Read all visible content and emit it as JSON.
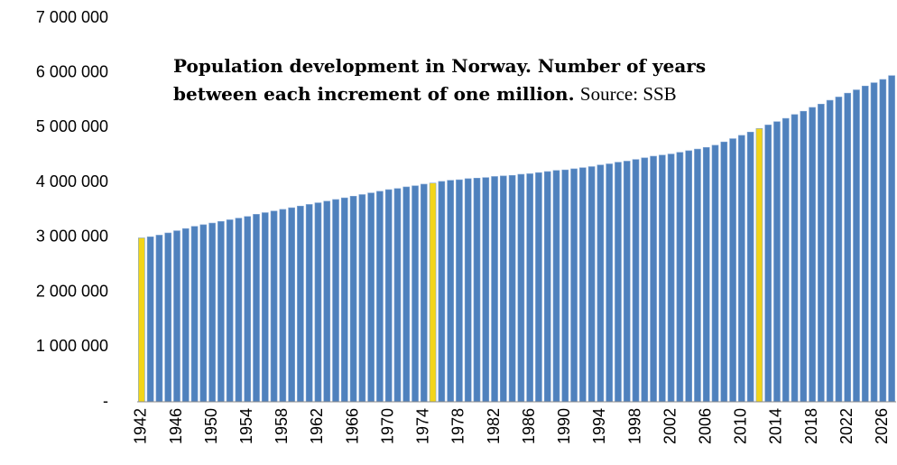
{
  "chart_data": {
    "type": "bar",
    "title": "Population development in Norway. Number of years between each increment of one million.",
    "source": "Source: SSB",
    "categories": [
      "1942",
      null,
      null,
      null,
      "1946",
      null,
      null,
      null,
      "1950",
      null,
      null,
      null,
      "1954",
      null,
      null,
      null,
      "1958",
      null,
      null,
      null,
      "1962",
      null,
      null,
      null,
      "1966",
      null,
      null,
      null,
      "1970",
      null,
      null,
      null,
      "1974",
      null,
      null,
      null,
      "1978",
      null,
      null,
      null,
      "1982",
      null,
      null,
      null,
      "1986",
      null,
      null,
      null,
      "1990",
      null,
      null,
      null,
      "1994",
      null,
      null,
      null,
      "1998",
      null,
      null,
      null,
      "2002",
      null,
      null,
      null,
      "2006",
      null,
      null,
      null,
      "2010",
      null,
      null,
      null,
      "2014",
      null,
      null,
      null,
      "2018",
      null,
      null,
      null,
      "2022",
      null,
      null,
      null,
      "2026",
      null
    ],
    "values": [
      2990000,
      3010000,
      3040000,
      3080000,
      3120000,
      3160000,
      3200000,
      3230000,
      3260000,
      3290000,
      3320000,
      3350000,
      3380000,
      3420000,
      3450000,
      3480000,
      3510000,
      3540000,
      3570000,
      3600000,
      3630000,
      3660000,
      3690000,
      3720000,
      3750000,
      3780000,
      3810000,
      3840000,
      3870000,
      3890000,
      3920000,
      3940000,
      3970000,
      3990000,
      4020000,
      4040000,
      4050000,
      4070000,
      4080000,
      4090000,
      4110000,
      4120000,
      4130000,
      4150000,
      4160000,
      4180000,
      4200000,
      4220000,
      4230000,
      4250000,
      4270000,
      4290000,
      4320000,
      4340000,
      4370000,
      4390000,
      4420000,
      4450000,
      4480000,
      4500000,
      4520000,
      4550000,
      4580000,
      4610000,
      4640000,
      4680000,
      4740000,
      4800000,
      4860000,
      4920000,
      4985000,
      5050000,
      5110000,
      5170000,
      5240000,
      5300000,
      5370000,
      5430000,
      5500000,
      5560000,
      5630000,
      5690000,
      5760000,
      5820000,
      5880000,
      5950000
    ],
    "colors": [
      "#f2d519",
      "#4f81bd",
      "#4f81bd",
      "#4f81bd",
      "#4f81bd",
      "#4f81bd",
      "#4f81bd",
      "#4f81bd",
      "#4f81bd",
      "#4f81bd",
      "#4f81bd",
      "#4f81bd",
      "#4f81bd",
      "#4f81bd",
      "#4f81bd",
      "#4f81bd",
      "#4f81bd",
      "#4f81bd",
      "#4f81bd",
      "#4f81bd",
      "#4f81bd",
      "#4f81bd",
      "#4f81bd",
      "#4f81bd",
      "#4f81bd",
      "#4f81bd",
      "#4f81bd",
      "#4f81bd",
      "#4f81bd",
      "#4f81bd",
      "#4f81bd",
      "#4f81bd",
      "#4f81bd",
      "#f2d519",
      "#4f81bd",
      "#4f81bd",
      "#4f81bd",
      "#4f81bd",
      "#4f81bd",
      "#4f81bd",
      "#4f81bd",
      "#4f81bd",
      "#4f81bd",
      "#4f81bd",
      "#4f81bd",
      "#4f81bd",
      "#4f81bd",
      "#4f81bd",
      "#4f81bd",
      "#4f81bd",
      "#4f81bd",
      "#4f81bd",
      "#4f81bd",
      "#4f81bd",
      "#4f81bd",
      "#4f81bd",
      "#4f81bd",
      "#4f81bd",
      "#4f81bd",
      "#4f81bd",
      "#4f81bd",
      "#4f81bd",
      "#4f81bd",
      "#4f81bd",
      "#4f81bd",
      "#4f81bd",
      "#4f81bd",
      "#4f81bd",
      "#4f81bd",
      "#4f81bd",
      "#f2d519",
      "#4f81bd",
      "#4f81bd",
      "#4f81bd",
      "#4f81bd",
      "#4f81bd",
      "#4f81bd",
      "#4f81bd",
      "#4f81bd",
      "#4f81bd",
      "#4f81bd",
      "#4f81bd",
      "#4f81bd",
      "#4f81bd",
      "#4f81bd",
      "#4f81bd"
    ],
    "ylim": [
      0,
      7000000
    ],
    "yticks": [
      {
        "value": 0,
        "label": "-"
      },
      {
        "value": 1000000,
        "label": "1 000 000"
      },
      {
        "value": 2000000,
        "label": "2 000 000"
      },
      {
        "value": 3000000,
        "label": "3 000 000"
      },
      {
        "value": 4000000,
        "label": "4 000 000"
      },
      {
        "value": 5000000,
        "label": "5 000 000"
      },
      {
        "value": 6000000,
        "label": "6 000 000"
      },
      {
        "value": 7000000,
        "label": "7 000 000"
      }
    ],
    "grid": false
  }
}
